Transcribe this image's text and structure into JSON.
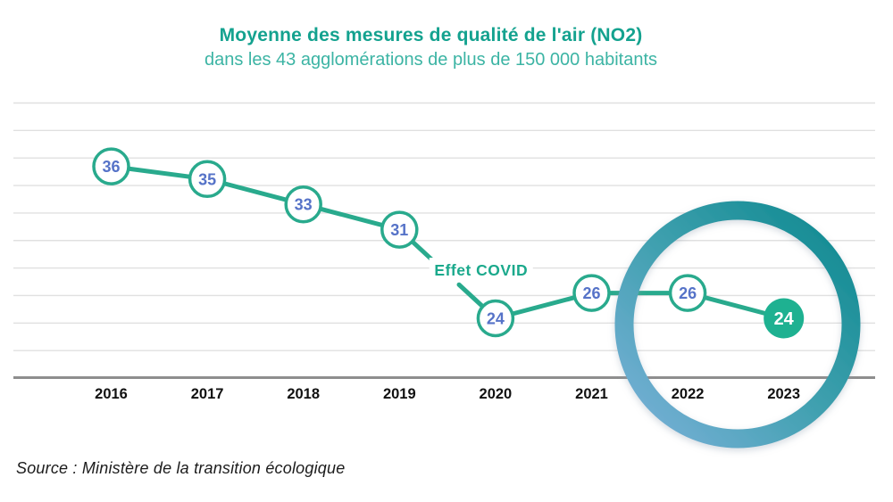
{
  "header": {
    "title": "Moyenne des mesures de qualité de l'air (NO2)",
    "subtitle": "dans les 43 agglomérations de plus de 150 000 habitants"
  },
  "footer": {
    "source": "Source : Ministère de la transition écologique"
  },
  "colors": {
    "title": "#14a28f",
    "subtitle": "#3cb4a4",
    "line": "#29aa8d",
    "point_stroke": "#29aa8d",
    "point_fill": "#ffffff",
    "point_text": "#5673c8",
    "final_point_fill": "#1eb191",
    "final_point_text": "#ffffff",
    "annotation": "#1ba98c",
    "grid": "#e0e0e0",
    "axis": "#8e8e8e",
    "x_labels": "#111111",
    "ring_gradient": [
      "#7cb1da",
      "#3fa0af",
      "#0c888e"
    ]
  },
  "chart_data": {
    "type": "line",
    "title": "Moyenne des mesures de qualité de l'air (NO2)",
    "subtitle": "dans les 43 agglomérations de plus de 150 000 habitants",
    "categories": [
      "2016",
      "2017",
      "2018",
      "2019",
      "2020",
      "2021",
      "2022",
      "2023"
    ],
    "values": [
      36,
      35,
      33,
      31,
      24,
      26,
      26,
      24
    ],
    "xlabel": "",
    "ylabel": "",
    "grid": true,
    "legend": "none",
    "annotation": {
      "text": "Effet COVID",
      "between": [
        "2019",
        "2020"
      ]
    },
    "highlight_ring": {
      "categories": [
        "2022",
        "2023"
      ]
    },
    "emphasized_point": {
      "category": "2023",
      "value": 24
    },
    "source": "Source : Ministère de la transition écologique"
  }
}
